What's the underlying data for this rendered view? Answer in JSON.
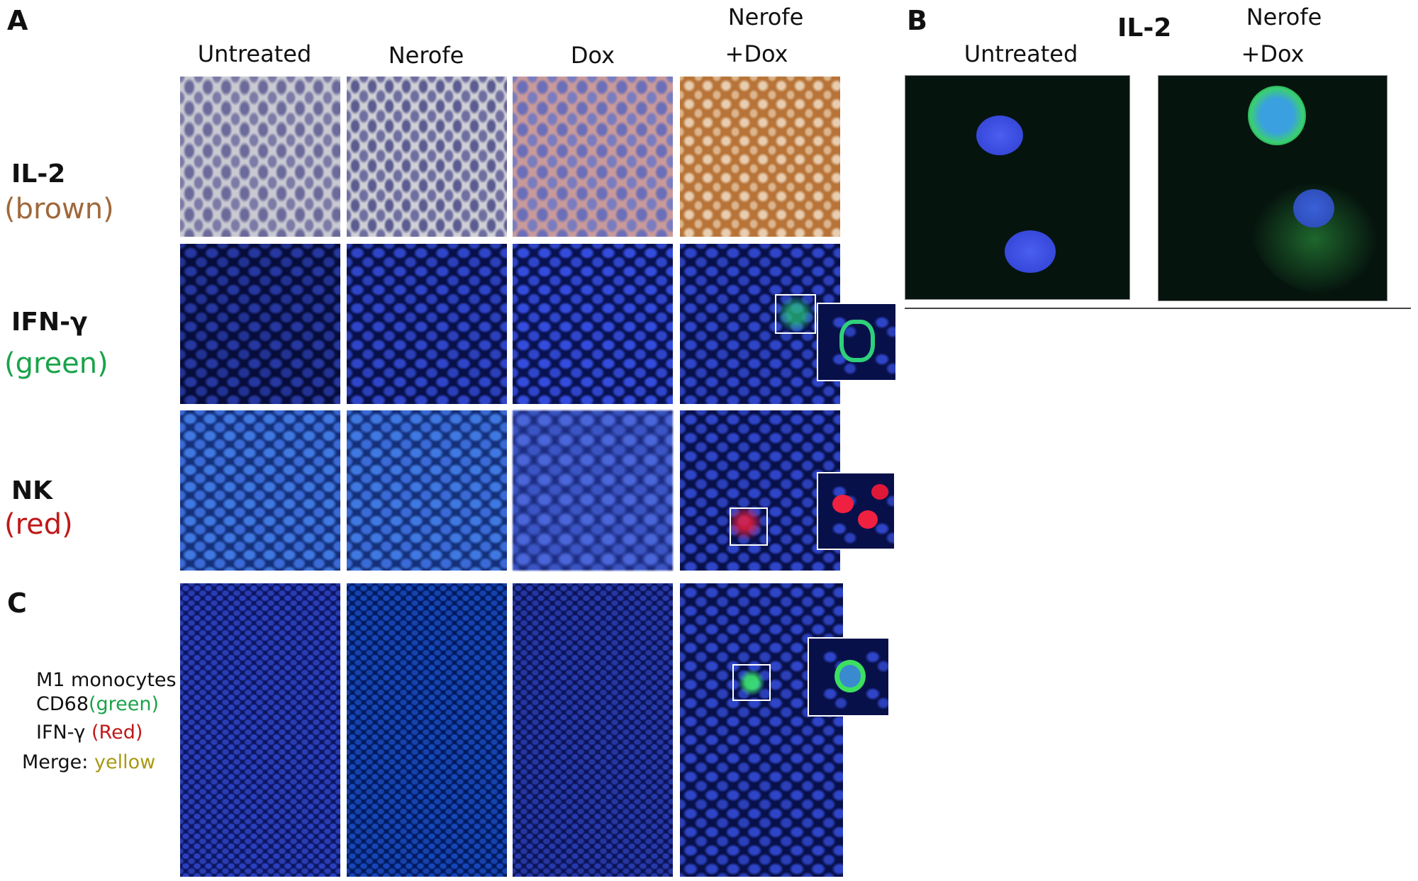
{
  "panel_a": {
    "label": "A",
    "columns": [
      "Untreated",
      "Nerofe",
      "Dox"
    ],
    "combo_column": [
      "Nerofe",
      "+Dox"
    ],
    "rows": [
      {
        "marker": "IL-2",
        "stain": "(brown)"
      },
      {
        "marker": "IFN-γ",
        "stain": "(green)"
      },
      {
        "marker": "NK",
        "stain": "(red)"
      }
    ]
  },
  "panel_b": {
    "label": "B",
    "title": "IL-2",
    "columns": [
      "Untreated"
    ],
    "combo_column": [
      "Nerofe",
      "+Dox"
    ]
  },
  "panel_c": {
    "label": "C",
    "legend": {
      "cell_type": "M1 monocytes",
      "marker_1": "CD68",
      "color_1": "(green)",
      "marker_2": "IFN-γ",
      "color_2": "(Red)",
      "merge": "Merge:",
      "merge_color": "yellow"
    }
  }
}
